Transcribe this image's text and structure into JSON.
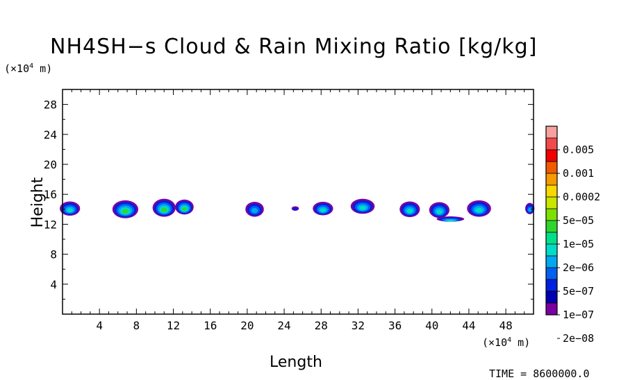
{
  "header": {
    "title": "NH4SH−s Cloud & Rain Mixing Ratio [kg/kg]",
    "y_unit_base": "(×10",
    "y_unit_exp": "4",
    "y_unit_tail": " m)",
    "x_unit_base": "(×10",
    "x_unit_exp": "4",
    "x_unit_tail": " m)",
    "time_label": "TIME = 8600000.0"
  },
  "chart_data": {
    "type": "heatmap",
    "title": "NH4SH−s Cloud & Rain Mixing Ratio [kg/kg]",
    "xlabel": "Length",
    "ylabel": "Height",
    "x_unit": "(×10^4 m)",
    "y_unit": "(×10^4 m)",
    "xlim": [
      0,
      51
    ],
    "ylim": [
      0,
      30
    ],
    "x_ticks": [
      4,
      8,
      12,
      16,
      20,
      24,
      28,
      32,
      36,
      40,
      44,
      48
    ],
    "y_ticks": [
      4,
      8,
      12,
      16,
      20,
      24,
      28
    ],
    "colorbar": {
      "labels": [
        "0.005",
        "0.001",
        "0.0002",
        "5e−05",
        "1e−05",
        "2e−06",
        "5e−07",
        "1e−07",
        "2e−08"
      ],
      "colors": [
        "#f7a0a0",
        "#f24a4a",
        "#f00000",
        "#f05a00",
        "#f59a00",
        "#f7d800",
        "#c8e600",
        "#7ee000",
        "#2fd52f",
        "#00e08a",
        "#00dcc8",
        "#00a8f0",
        "#0060f0",
        "#0020e0",
        "#0000b0",
        "#7a00a0"
      ]
    },
    "clouds": [
      {
        "x": 0.8,
        "y": 14.1,
        "w": 2.2,
        "h": 1.9,
        "level": 3
      },
      {
        "x": 6.8,
        "y": 14.0,
        "w": 2.8,
        "h": 2.4,
        "level": 4
      },
      {
        "x": 11.0,
        "y": 14.2,
        "w": 2.5,
        "h": 2.4,
        "level": 4
      },
      {
        "x": 13.2,
        "y": 14.3,
        "w": 2.0,
        "h": 2.0,
        "level": 4
      },
      {
        "x": 20.8,
        "y": 14.0,
        "w": 2.0,
        "h": 2.0,
        "level": 2
      },
      {
        "x": 25.2,
        "y": 14.1,
        "w": 0.8,
        "h": 0.6,
        "level": 0
      },
      {
        "x": 28.2,
        "y": 14.1,
        "w": 2.2,
        "h": 1.8,
        "level": 3
      },
      {
        "x": 32.5,
        "y": 14.4,
        "w": 2.6,
        "h": 2.0,
        "level": 3
      },
      {
        "x": 37.6,
        "y": 14.0,
        "w": 2.2,
        "h": 2.1,
        "level": 3
      },
      {
        "x": 40.8,
        "y": 13.9,
        "w": 2.2,
        "h": 2.1,
        "level": 3
      },
      {
        "x": 42.0,
        "y": 12.7,
        "w": 3.0,
        "h": 0.7,
        "level": 3
      },
      {
        "x": 45.1,
        "y": 14.1,
        "w": 2.6,
        "h": 2.2,
        "level": 3
      },
      {
        "x": 50.6,
        "y": 14.1,
        "w": 1.0,
        "h": 1.5,
        "level": 2
      }
    ]
  }
}
